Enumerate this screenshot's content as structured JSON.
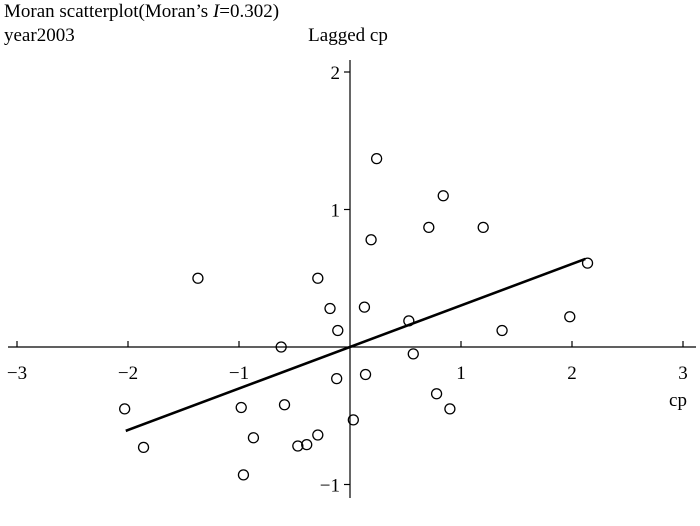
{
  "header": {
    "title_prefix": "Moran scatterplot(Moran’s ",
    "title_italic": "I",
    "title_suffix": "=0.302)",
    "subtitle": "year2003"
  },
  "chart_data": {
    "type": "scatter",
    "title": "Moran scatterplot(Moran’s I=0.302)",
    "subtitle": "year2003",
    "xlabel": "cp",
    "ylabel": "Lagged cp",
    "xlim": [
      -3,
      3
    ],
    "ylim": [
      -1,
      2
    ],
    "xticks": [
      -3,
      -2,
      -1,
      0,
      1,
      2,
      3
    ],
    "xtick_labels": [
      "−3",
      "−2",
      "−1",
      "",
      "1",
      "2",
      "3"
    ],
    "yticks": [
      -1,
      0,
      1,
      2
    ],
    "ytick_labels": [
      "−1",
      "",
      "1",
      "2"
    ],
    "grid": false,
    "marker": "open-circle",
    "regression_line": {
      "slope": 0.302,
      "intercept": 0,
      "x_range": [
        -2.02,
        2.12
      ]
    },
    "points": [
      [
        -2.03,
        -0.45
      ],
      [
        -1.86,
        -0.73
      ],
      [
        -1.37,
        0.5
      ],
      [
        -0.98,
        -0.44
      ],
      [
        -0.96,
        -0.93
      ],
      [
        -0.87,
        -0.66
      ],
      [
        -0.62,
        0.0
      ],
      [
        -0.59,
        -0.42
      ],
      [
        -0.47,
        -0.72
      ],
      [
        -0.39,
        -0.71
      ],
      [
        -0.29,
        -0.64
      ],
      [
        -0.29,
        0.5
      ],
      [
        -0.18,
        0.28
      ],
      [
        -0.11,
        0.12
      ],
      [
        -0.12,
        -0.23
      ],
      [
        0.03,
        -0.53
      ],
      [
        0.13,
        0.29
      ],
      [
        0.14,
        -0.2
      ],
      [
        0.19,
        0.78
      ],
      [
        0.24,
        1.37
      ],
      [
        0.53,
        0.19
      ],
      [
        0.57,
        -0.05
      ],
      [
        0.71,
        0.87
      ],
      [
        0.78,
        -0.34
      ],
      [
        0.84,
        1.1
      ],
      [
        0.9,
        -0.45
      ],
      [
        1.2,
        0.87
      ],
      [
        1.37,
        0.12
      ],
      [
        1.98,
        0.22
      ],
      [
        2.14,
        0.61
      ]
    ]
  }
}
